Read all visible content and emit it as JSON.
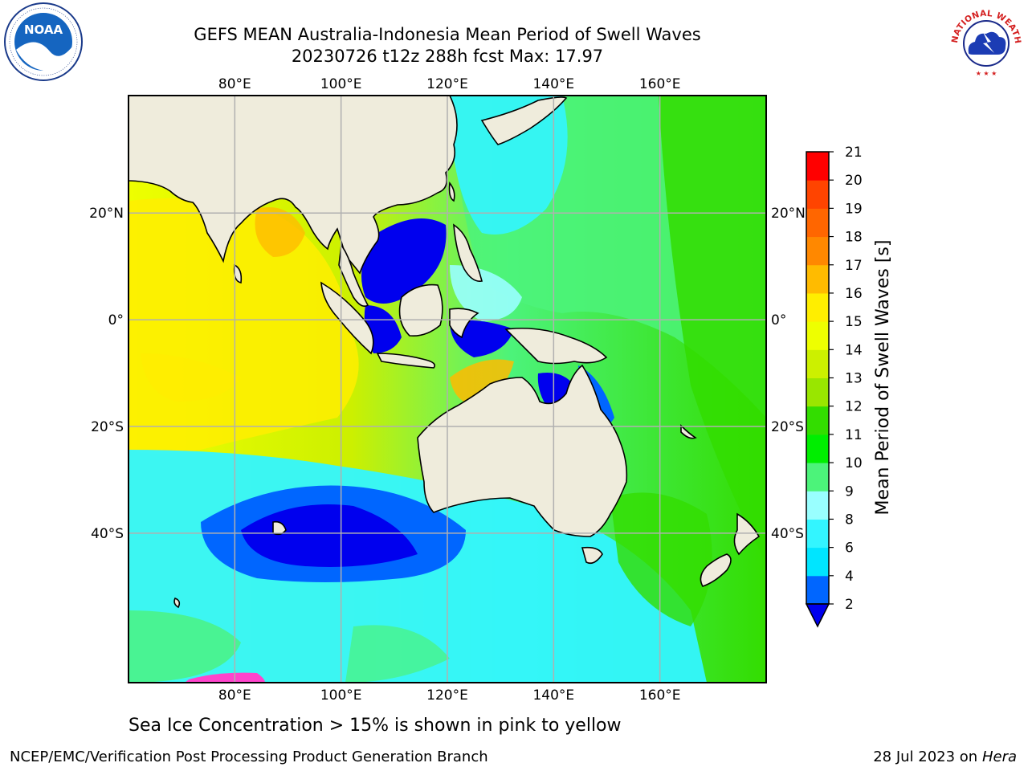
{
  "title": {
    "line1": "GEFS MEAN Australia-Indonesia Mean Period of Swell Waves",
    "line2": "20230726 t12z 288h fcst   Max: 17.97"
  },
  "logos": {
    "noaa": {
      "icon": "noaa-logo-icon",
      "text": "NOAA",
      "ring_text": "NATIONAL OCEANIC AND ATMOSPHERIC ADMINISTRATION · U.S. DEPARTMENT OF COMMERCE"
    },
    "nws": {
      "icon": "nws-logo-icon",
      "ring_text": "NATIONAL WEATHER SERVICE"
    }
  },
  "map": {
    "lon_ticks_top": [
      "80°E",
      "100°E",
      "120°E",
      "140°E",
      "160°E"
    ],
    "lon_ticks_bottom": [
      "80°E",
      "100°E",
      "120°E",
      "140°E",
      "160°E"
    ],
    "lat_ticks_left": [
      "20°N",
      "0°",
      "20°S",
      "40°S"
    ],
    "lat_ticks_right": [
      "20°N",
      "0°",
      "20°S",
      "40°S"
    ],
    "lon_values": [
      80,
      100,
      120,
      140,
      160
    ],
    "lat_values": [
      20,
      0,
      -20,
      -40
    ],
    "lon_range": [
      60,
      180
    ],
    "lat_range": [
      -68,
      42
    ],
    "land_color": "#efecdc",
    "grid": true
  },
  "colorbar": {
    "label": "Mean Period of Swell Waves [s]",
    "ticks": [
      "21",
      "20",
      "19",
      "18",
      "17",
      "16",
      "15",
      "14",
      "13",
      "12",
      "11",
      "10",
      "9",
      "8",
      "6",
      "4",
      "2"
    ],
    "levels": [
      2,
      4,
      6,
      8,
      9,
      10,
      11,
      12,
      13,
      14,
      15,
      16,
      17,
      18,
      19,
      20,
      21
    ],
    "colors": [
      "#0066ff",
      "#00e5ff",
      "#33f5ff",
      "#99ffff",
      "#4cf37a",
      "#00ee00",
      "#33dd00",
      "#99e600",
      "#ccf000",
      "#eeff00",
      "#ffee00",
      "#ffbb00",
      "#ff8800",
      "#ff6600",
      "#ff4400",
      "#ff0000"
    ],
    "under_color": "#0000ee"
  },
  "caption": "Sea Ice Concentration > 15% is shown in pink to yellow",
  "footer": {
    "left": "NCEP/EMC/Verification Post Processing Product Generation Branch",
    "right_prefix": "28 Jul 2023 on ",
    "right_host": "Hera"
  }
}
